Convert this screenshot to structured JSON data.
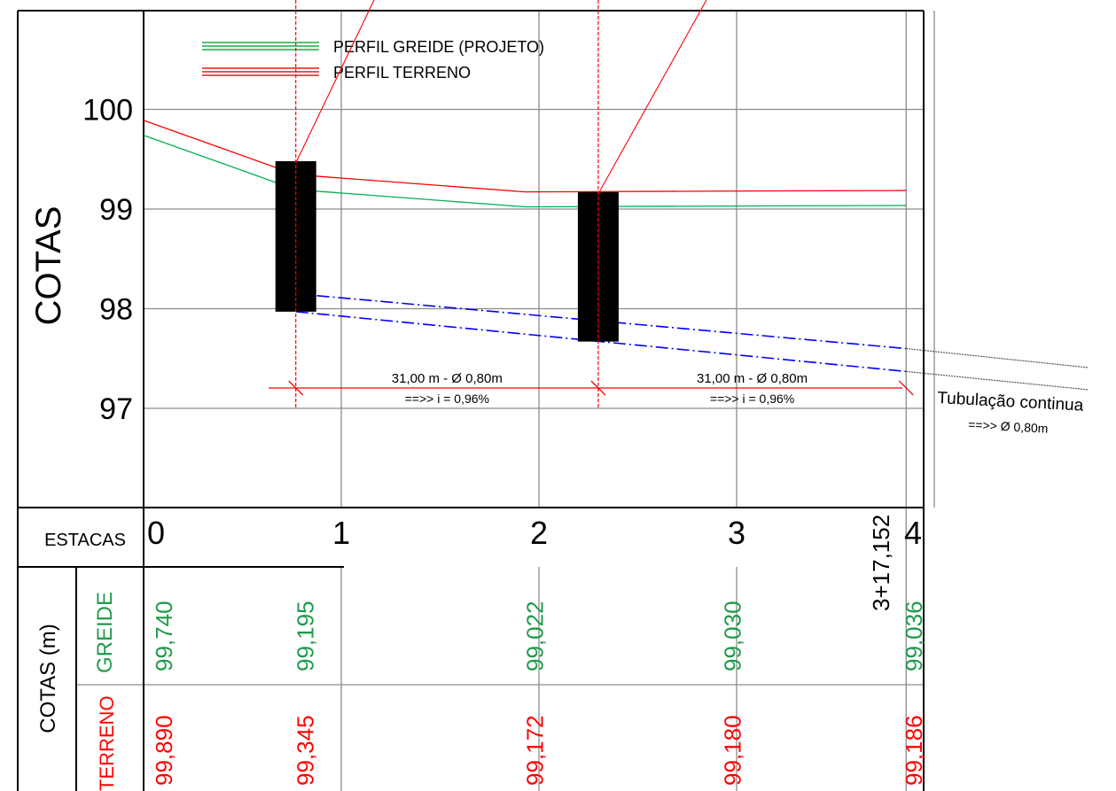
{
  "colors": {
    "greide": "#00b050",
    "terreno": "#ff0000",
    "tubulacao": "#0000ff",
    "grid": "#8c8c8c",
    "frame": "#000000",
    "poco": "#000000",
    "greide_text": "#1e9b4b",
    "terreno_text": "#ff0000"
  },
  "legend": [
    {
      "label": "PERFIL GREIDE (PROJETO)",
      "color": "#22a54a"
    },
    {
      "label": "PERFIL TERRENO",
      "color": "#e31b1b"
    }
  ],
  "axis": {
    "title": "COTAS",
    "ticks": [
      {
        "value": 97,
        "label": "97"
      },
      {
        "value": 98,
        "label": "98"
      },
      {
        "value": 99,
        "label": "99"
      },
      {
        "value": 100,
        "label": "100"
      }
    ]
  },
  "estacas": {
    "header": "ESTACAS",
    "stations": [
      {
        "value": 0,
        "label": "0"
      },
      {
        "value": 1,
        "label": "1"
      },
      {
        "value": 2,
        "label": "2"
      },
      {
        "value": 3,
        "label": "3"
      },
      {
        "value": 4,
        "label": "4"
      }
    ],
    "end_station": {
      "value": 3.8576,
      "label": "3+17,152"
    }
  },
  "table": {
    "group_label": "COTAS (m)",
    "greide_label": "GREIDE",
    "terreno_label": "TERRENO",
    "greide": [
      {
        "station": 0,
        "label": "99,740"
      },
      {
        "station": 0.77,
        "label": "99,195"
      },
      {
        "station": 1.93,
        "label": "99,022"
      },
      {
        "station": 2.93,
        "label": "99,030"
      },
      {
        "station": 3.8576,
        "label": "99,036"
      }
    ],
    "terreno": [
      {
        "station": 0,
        "label": "99,890"
      },
      {
        "station": 0.77,
        "label": "99,345"
      },
      {
        "station": 1.93,
        "label": "99,172"
      },
      {
        "station": 2.93,
        "label": "99,180"
      },
      {
        "station": 3.8576,
        "label": "99,186"
      }
    ]
  },
  "chart_data": {
    "type": "line",
    "ylabel": "COTAS",
    "xlabel": "ESTACAS",
    "ylim": [
      96.0,
      101.0
    ],
    "series": [
      {
        "name": "PERFIL GREIDE (PROJETO)",
        "x": [
          0,
          0.77,
          1.93,
          2.93,
          3.8576
        ],
        "y": [
          99.74,
          99.195,
          99.022,
          99.03,
          99.036
        ]
      },
      {
        "name": "PERFIL TERRENO",
        "x": [
          0,
          0.77,
          1.93,
          2.93,
          3.8576
        ],
        "y": [
          99.89,
          99.345,
          99.172,
          99.18,
          99.186
        ]
      }
    ],
    "pocos": [
      {
        "station": 0.77,
        "top": 99.48,
        "bottom": 97.97
      },
      {
        "station": 2.3,
        "top": 99.17,
        "bottom": 97.67
      }
    ],
    "tubulacao": {
      "inicio": {
        "station": 0.77,
        "top": 98.15,
        "bottom": 97.97
      },
      "fim": {
        "station": 3.8576,
        "top": 97.6,
        "bottom": 97.37
      }
    },
    "trechos": [
      {
        "from": 0.77,
        "to": 2.3,
        "label": "31,00 m - Ø 0,80m",
        "slope": "==>> i = 0,96%"
      },
      {
        "from": 2.3,
        "to": 3.8576,
        "label": "31,00 m - Ø 0,80m",
        "slope": "==>> i = 0,96%"
      }
    ]
  },
  "continuation": {
    "label": "Tubulação continua",
    "sub": "==>> Ø 0,80m"
  }
}
